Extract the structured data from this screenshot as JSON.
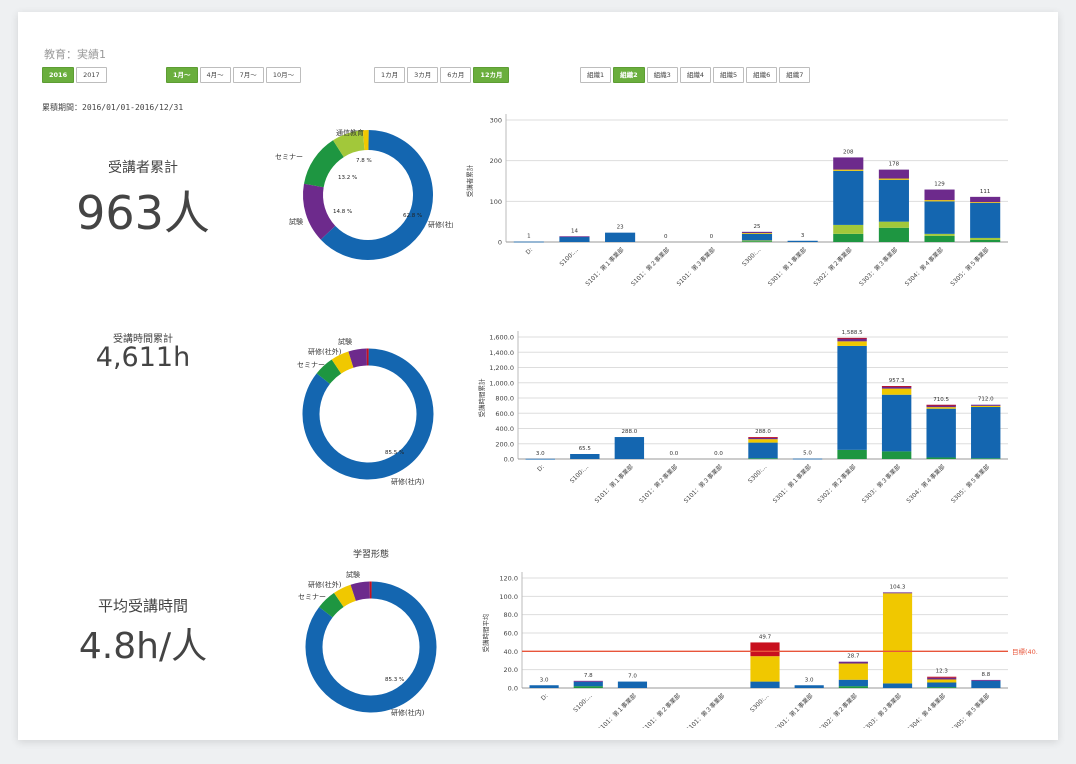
{
  "header": {
    "title": "教育：実績1"
  },
  "year_buttons": [
    {
      "label": "2016",
      "active": true
    },
    {
      "label": "2017",
      "active": false
    }
  ],
  "month_buttons": [
    {
      "label": "1月〜",
      "active": true
    },
    {
      "label": "4月〜",
      "active": false
    },
    {
      "label": "7月〜",
      "active": false
    },
    {
      "label": "10月〜",
      "active": false
    }
  ],
  "range_buttons": [
    {
      "label": "1カ月",
      "active": false
    },
    {
      "label": "3カ月",
      "active": false
    },
    {
      "label": "6カ月",
      "active": false
    },
    {
      "label": "12カ月",
      "active": true
    }
  ],
  "org_buttons": [
    {
      "label": "組織1",
      "active": false
    },
    {
      "label": "組織2",
      "active": true
    },
    {
      "label": "組織3",
      "active": false
    },
    {
      "label": "組織4",
      "active": false
    },
    {
      "label": "組織5",
      "active": false
    },
    {
      "label": "組織6",
      "active": false
    },
    {
      "label": "組織7",
      "active": false
    }
  ],
  "period_label": "累積期間：2016/01/01-2016/12/31",
  "metrics": [
    {
      "title": "受講者累計",
      "value": "963人"
    },
    {
      "title": "受講時間累計",
      "value": "4,611h"
    },
    {
      "title": "平均受講時間",
      "value": "4.8h/人"
    }
  ],
  "colors": {
    "blue": "#1466b0",
    "green": "#1e9641",
    "lime": "#a2c83a",
    "purple": "#6d2a8c",
    "yellow": "#f0c800",
    "red": "#c8101e",
    "target": "#e8553a"
  },
  "chart_data": [
    {
      "type": "pie",
      "donut": true,
      "slices": [
        {
          "name": "研修(社内)",
          "value": 62.8,
          "label": "62.8 %",
          "color": "blue"
        },
        {
          "name": "試験",
          "value": 14.8,
          "label": "14.8 %",
          "color": "purple"
        },
        {
          "name": "セミナー",
          "value": 13.2,
          "label": "13.2 %",
          "color": "green"
        },
        {
          "name": "通信教育",
          "value": 7.8,
          "label": "7.8 %",
          "color": "lime"
        },
        {
          "name": "",
          "value": 1.4,
          "label": "",
          "color": "yellow"
        }
      ]
    },
    {
      "type": "bar",
      "stacked": true,
      "ylabel": "受講者累計",
      "ylim": [
        0,
        300
      ],
      "yticks": [
        "0",
        "100",
        "200",
        "300"
      ],
      "grid": true,
      "categories": [
        "D:",
        "S100:…",
        "S101：第１事業部",
        "S101：第２事業部",
        "S101：第３事業部",
        "S300:…",
        "S301：第１事業部",
        "S302：第２事業部",
        "S303：第３事業部",
        "S304：第４事業部",
        "S305：第５事業部"
      ],
      "totals": [
        "1",
        "14",
        "23",
        "0",
        "0",
        "25",
        "3",
        "208",
        "178",
        "129",
        "111"
      ],
      "series": [
        {
          "color": "green",
          "values": [
            0,
            0,
            0,
            0,
            0,
            2,
            0,
            20,
            35,
            15,
            5
          ]
        },
        {
          "color": "lime",
          "values": [
            0,
            0,
            0,
            0,
            0,
            2,
            0,
            22,
            15,
            5,
            5
          ]
        },
        {
          "color": "blue",
          "values": [
            1,
            13,
            23,
            0,
            0,
            16,
            3,
            133,
            103,
            80,
            86
          ]
        },
        {
          "color": "yellow",
          "values": [
            0,
            0,
            0,
            0,
            0,
            2,
            0,
            3,
            3,
            3,
            2
          ]
        },
        {
          "color": "purple",
          "values": [
            0,
            1,
            0,
            0,
            0,
            3,
            0,
            30,
            22,
            26,
            13
          ]
        }
      ]
    },
    {
      "type": "pie",
      "donut": true,
      "slices": [
        {
          "name": "研修(社内)",
          "value": 85.5,
          "label": "85.5 %",
          "color": "blue"
        },
        {
          "name": "セミナー",
          "value": 5.0,
          "label": "",
          "color": "green"
        },
        {
          "name": "研修(社外)",
          "value": 4.5,
          "label": "",
          "color": "yellow"
        },
        {
          "name": "試験",
          "value": 4.5,
          "label": "",
          "color": "purple"
        },
        {
          "name": "",
          "value": 0.5,
          "label": "",
          "color": "red"
        }
      ]
    },
    {
      "type": "bar",
      "stacked": true,
      "ylabel": "受講時間累計",
      "ylim": [
        0,
        1600
      ],
      "yticks": [
        "0.0",
        "200.0",
        "400.0",
        "600.0",
        "800.0",
        "1,000.0",
        "1,200.0",
        "1,400.0",
        "1,600.0"
      ],
      "grid": true,
      "categories": [
        "D:",
        "S100:…",
        "S101：第１事業部",
        "S101：第２事業部",
        "S101：第３事業部",
        "S300:…",
        "S301：第１事業部",
        "S302：第２事業部",
        "S303：第３事業部",
        "S304：第４事業部",
        "S305：第５事業部"
      ],
      "totals": [
        "3.0",
        "65.5",
        "288.0",
        "0.0",
        "0.0",
        "288.0",
        "5.0",
        "1,588.5",
        "957.3",
        "710.5",
        "712.0"
      ],
      "series": [
        {
          "color": "green",
          "values": [
            0,
            0,
            0,
            0,
            0,
            10,
            0,
            120,
            100,
            20,
            10
          ]
        },
        {
          "color": "blue",
          "values": [
            3,
            65.5,
            288,
            0,
            0,
            205,
            5,
            1363,
            743,
            640,
            672
          ]
        },
        {
          "color": "yellow",
          "values": [
            0,
            0,
            0,
            0,
            0,
            45,
            0,
            60,
            80,
            20,
            15
          ]
        },
        {
          "color": "purple",
          "values": [
            0,
            0,
            0,
            0,
            0,
            20,
            0,
            38,
            32,
            30,
            15
          ]
        },
        {
          "color": "red",
          "values": [
            0,
            0,
            0,
            0,
            0,
            8,
            0,
            7.5,
            2.3,
            0.5,
            0
          ]
        }
      ]
    },
    {
      "type": "pie",
      "donut": true,
      "title": "学習形態",
      "slices": [
        {
          "name": "研修(社内)",
          "value": 85.3,
          "label": "85.3 %",
          "color": "blue"
        },
        {
          "name": "セミナー",
          "value": 5.0,
          "label": "",
          "color": "green"
        },
        {
          "name": "研修(社外)",
          "value": 4.5,
          "label": "",
          "color": "yellow"
        },
        {
          "name": "試験",
          "value": 4.7,
          "label": "",
          "color": "purple"
        },
        {
          "name": "",
          "value": 0.5,
          "label": "",
          "color": "red"
        }
      ]
    },
    {
      "type": "bar",
      "stacked": true,
      "ylabel": "受講時間平均",
      "ylim": [
        0,
        120
      ],
      "yticks": [
        "0.0",
        "20.0",
        "40.0",
        "60.0",
        "80.0",
        "100.0",
        "120.0"
      ],
      "grid": true,
      "target": {
        "value": 40,
        "label": "目標(40.0)"
      },
      "categories": [
        "D:",
        "S100:…",
        "S101：第１事業部",
        "S101：第２事業部",
        "S101：第３事業部",
        "S300:…",
        "S301：第１事業部",
        "S302：第２事業部",
        "S303：第３事業部",
        "S304：第４事業部",
        "S305：第５事業部"
      ],
      "totals": [
        "3.0",
        "7.8",
        "7.0",
        "",
        "",
        "49.7",
        "3.0",
        "28.7",
        "104.3",
        "12.3",
        "8.8"
      ],
      "series": [
        {
          "color": "green",
          "values": [
            0,
            2,
            0,
            0,
            0,
            0,
            0,
            2,
            0,
            1,
            0
          ]
        },
        {
          "color": "blue",
          "values": [
            3,
            4.8,
            7,
            0,
            0,
            7,
            3,
            7,
            5,
            5,
            7.8
          ]
        },
        {
          "color": "yellow",
          "values": [
            0,
            0,
            0,
            0,
            0,
            27.7,
            0,
            17.7,
            98.3,
            3.3,
            0
          ]
        },
        {
          "color": "purple",
          "values": [
            0,
            1,
            0,
            0,
            0,
            0,
            0,
            2,
            1,
            2,
            1
          ]
        },
        {
          "color": "red",
          "values": [
            0,
            0,
            0,
            0,
            0,
            15,
            0,
            0,
            0,
            1,
            0
          ]
        }
      ]
    }
  ]
}
